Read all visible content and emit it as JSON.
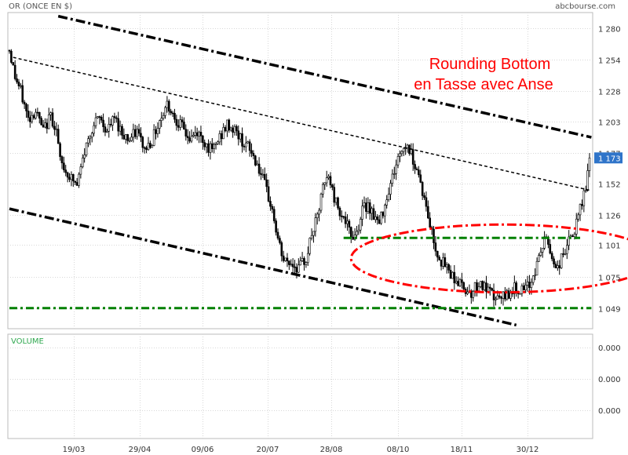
{
  "header": {
    "title": "OR (ONCE EN $)",
    "source": "abcbourse.com"
  },
  "annotation": {
    "line1": "Rounding Bottom",
    "line2": "en Tasse avec Anse",
    "color": "#ff0000"
  },
  "volume_panel": {
    "label": "VOLUME",
    "ticks": [
      "0.000",
      "0.000",
      "0.000"
    ]
  },
  "chart_data": {
    "type": "candlestick",
    "price_axis": {
      "ticks": [
        1280,
        1254,
        1228,
        1203,
        1177,
        1152,
        1126,
        1101,
        1075,
        1049
      ],
      "tick_labels": [
        "1 280",
        "1 254",
        "1 228",
        "1 203",
        "1 177",
        "1 152",
        "1 126",
        "1 101",
        "1 075",
        "1 049"
      ],
      "ylim": [
        1032,
        1293
      ],
      "last_price": 1173,
      "last_price_label": "1 173"
    },
    "date_axis": {
      "tick_labels": [
        "19/03",
        "29/04",
        "09/06",
        "20/07",
        "28/08",
        "08/10",
        "18/11",
        "30/12"
      ]
    },
    "price_path": [
      [
        0,
        1262
      ],
      [
        3,
        1240
      ],
      [
        6,
        1228
      ],
      [
        10,
        1205
      ],
      [
        14,
        1212
      ],
      [
        18,
        1195
      ],
      [
        22,
        1208
      ],
      [
        25,
        1196
      ],
      [
        27,
        1170
      ],
      [
        30,
        1162
      ],
      [
        33,
        1156
      ],
      [
        36,
        1150
      ],
      [
        40,
        1178
      ],
      [
        44,
        1198
      ],
      [
        48,
        1206
      ],
      [
        52,
        1195
      ],
      [
        56,
        1206
      ],
      [
        60,
        1194
      ],
      [
        64,
        1188
      ],
      [
        68,
        1195
      ],
      [
        72,
        1180
      ],
      [
        76,
        1188
      ],
      [
        80,
        1204
      ],
      [
        84,
        1218
      ],
      [
        88,
        1207
      ],
      [
        92,
        1198
      ],
      [
        96,
        1188
      ],
      [
        100,
        1194
      ],
      [
        104,
        1186
      ],
      [
        108,
        1178
      ],
      [
        112,
        1190
      ],
      [
        116,
        1200
      ],
      [
        120,
        1196
      ],
      [
        124,
        1187
      ],
      [
        128,
        1180
      ],
      [
        132,
        1168
      ],
      [
        136,
        1150
      ],
      [
        140,
        1130
      ],
      [
        143,
        1105
      ],
      [
        146,
        1088
      ],
      [
        150,
        1086
      ],
      [
        154,
        1082
      ],
      [
        158,
        1090
      ],
      [
        161,
        1110
      ],
      [
        164,
        1123
      ],
      [
        167,
        1148
      ],
      [
        170,
        1158
      ],
      [
        173,
        1140
      ],
      [
        176,
        1130
      ],
      [
        179,
        1120
      ],
      [
        182,
        1108
      ],
      [
        185,
        1112
      ],
      [
        188,
        1130
      ],
      [
        191,
        1135
      ],
      [
        194,
        1126
      ],
      [
        197,
        1118
      ],
      [
        200,
        1136
      ],
      [
        203,
        1152
      ],
      [
        206,
        1168
      ],
      [
        209,
        1180
      ],
      [
        212,
        1184
      ],
      [
        215,
        1172
      ],
      [
        218,
        1160
      ],
      [
        221,
        1138
      ],
      [
        224,
        1118
      ],
      [
        227,
        1098
      ],
      [
        230,
        1088
      ],
      [
        234,
        1080
      ],
      [
        238,
        1072
      ],
      [
        242,
        1066
      ],
      [
        246,
        1062
      ],
      [
        250,
        1070
      ],
      [
        254,
        1064
      ],
      [
        258,
        1058
      ],
      [
        262,
        1056
      ],
      [
        266,
        1062
      ],
      [
        270,
        1066
      ],
      [
        274,
        1062
      ],
      [
        277,
        1068
      ],
      [
        280,
        1080
      ],
      [
        283,
        1096
      ],
      [
        286,
        1108
      ],
      [
        289,
        1090
      ],
      [
        292,
        1082
      ],
      [
        295,
        1094
      ],
      [
        298,
        1104
      ],
      [
        301,
        1112
      ],
      [
        304,
        1130
      ],
      [
        307,
        1150
      ],
      [
        309,
        1172
      ]
    ],
    "n_bars": 310,
    "trendlines": [
      {
        "style": "dash-dot-heavy",
        "color": "#000000",
        "from": [
          26,
          1290
        ],
        "to": [
          310,
          1190
        ]
      },
      {
        "style": "dotted",
        "color": "#000000",
        "from": [
          2,
          1256
        ],
        "to": [
          310,
          1146
        ]
      },
      {
        "style": "dash-dot-heavy",
        "color": "#000000",
        "from": [
          0,
          1131
        ],
        "to": [
          270,
          1035
        ]
      }
    ],
    "support_lines": [
      {
        "color": "#008000",
        "price": 1049,
        "from": 0,
        "to": 310
      },
      {
        "color": "#008000",
        "price": 1107,
        "from": 178,
        "to": 304
      }
    ],
    "highlight_ellipse": {
      "color": "#ff0000",
      "center": [
        263,
        1090
      ],
      "radius_bars": 81,
      "radius_price": 28
    }
  }
}
